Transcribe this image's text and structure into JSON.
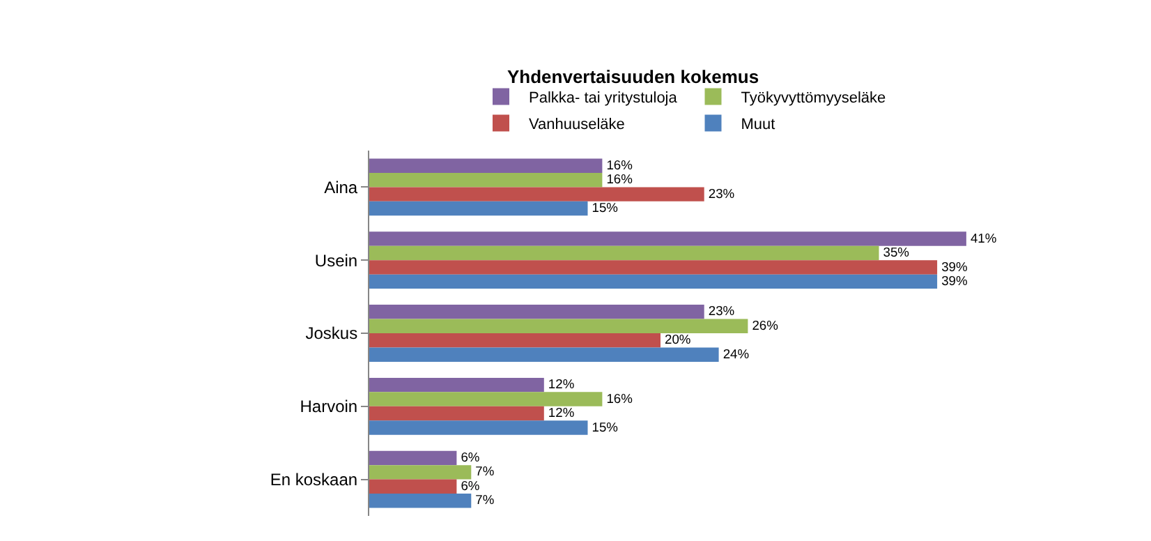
{
  "chart_data": {
    "type": "bar",
    "orientation": "horizontal",
    "title": "Yhdenvertaisuuden kokemus",
    "categories": [
      "Aina",
      "Usein",
      "Joskus",
      "Harvoin",
      "En koskaan"
    ],
    "series": [
      {
        "name": "Palkka- tai yritystuloja",
        "color": "#8064a2",
        "values": [
          16,
          41,
          23,
          12,
          6
        ],
        "value_labels": [
          "16%",
          "41%",
          "23%",
          "12%",
          "6%"
        ]
      },
      {
        "name": "Työkyvyttömyyseläke",
        "color": "#9bbb59",
        "values": [
          16,
          35,
          26,
          16,
          7
        ],
        "value_labels": [
          "16%",
          "35%",
          "26%",
          "16%",
          "7%"
        ]
      },
      {
        "name": "Vanhuuseläke",
        "color": "#c0504d",
        "values": [
          23,
          39,
          20,
          12,
          6
        ],
        "value_labels": [
          "23%",
          "39%",
          "20%",
          "12%",
          "6%"
        ]
      },
      {
        "name": "Muut",
        "color": "#4f81bd",
        "values": [
          15,
          39,
          24,
          15,
          7
        ],
        "value_labels": [
          "15%",
          "39%",
          "24%",
          "15%",
          "7%"
        ]
      }
    ],
    "legend": "top",
    "tick_labels": "y"
  }
}
